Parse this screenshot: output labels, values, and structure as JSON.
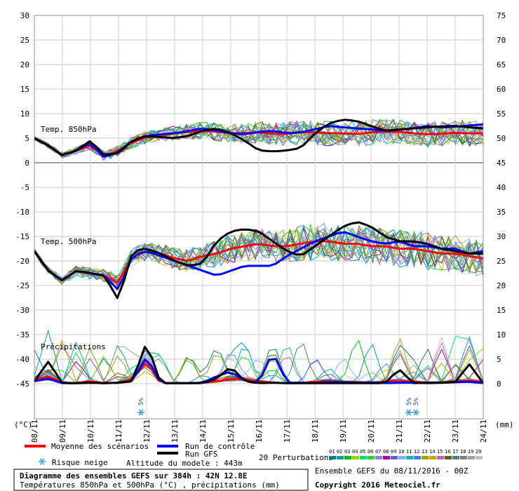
{
  "chart_data": {
    "type": "line",
    "title": "Diagramme des ensembles GEFS sur 384h : 42N 12.8E",
    "subtitle": "Températures 850hPa et 500hPa (°C) , précipitations (mm)",
    "left_axis_unit": "(°C)",
    "right_axis_unit": "(mm)",
    "left_ticks": [
      30,
      25,
      20,
      15,
      10,
      5,
      0,
      -5,
      -10,
      -15,
      -20,
      -25,
      -30,
      -35,
      -40,
      -45
    ],
    "right_ticks": [
      75,
      70,
      65,
      60,
      55,
      50,
      45,
      40,
      35,
      30,
      25,
      20,
      15,
      10,
      5,
      0
    ],
    "ylim": [
      -45,
      30
    ],
    "x_tick_labels": [
      "08/11",
      "09/11",
      "10/11",
      "11/11",
      "12/11",
      "13/11",
      "14/11",
      "15/11",
      "16/11",
      "17/11",
      "18/11",
      "19/11",
      "20/11",
      "21/11",
      "22/11",
      "23/11",
      "24/11"
    ],
    "x_steps": 65,
    "section_labels": {
      "t850": "Temp. 850hPa",
      "t500": "Temp. 500hPa",
      "precip": "Précipitations"
    },
    "snow_risk_markers": [
      {
        "day_index": 3.8,
        "label": "5%"
      },
      {
        "day_index": 13.35,
        "label": "5%"
      },
      {
        "day_index": 13.6,
        "label": "5%"
      }
    ],
    "series": [
      {
        "name": "Moyenne des scénarios",
        "role": "mean_t850",
        "color": "#ff0000",
        "values_by_day": [
          5,
          3.5,
          1.5,
          2.5,
          3.5,
          1.3,
          2.5,
          4.2,
          5.2,
          5.5,
          6.0,
          6.3,
          6.6,
          6.3,
          6.0,
          6.0,
          6.2,
          5.9,
          5.9,
          6.2,
          6.2,
          6.0,
          6.0,
          5.8,
          6.2,
          6.3,
          6.3,
          6.0,
          5.8,
          5.9,
          6.1,
          6.0,
          6.0
        ]
      },
      {
        "name": "Run de contrôle",
        "role": "ctrl_t850",
        "color": "#0000ff",
        "values_by_day": [
          5,
          3.5,
          1.5,
          2.5,
          4.0,
          1.0,
          2.3,
          4.5,
          5.5,
          5.8,
          6.0,
          6.5,
          7.0,
          6.5,
          6.0,
          5.8,
          6.3,
          6.5,
          6.0,
          6.2,
          6.8,
          7.5,
          7.2,
          7.0,
          6.8,
          6.5,
          6.7,
          7.0,
          7.5,
          7.2,
          7.3,
          7.6,
          7.8
        ]
      },
      {
        "name": "Run GFS",
        "role": "gfs_t850",
        "color": "#000000",
        "values_by_day": [
          5,
          3.5,
          1.5,
          2.5,
          4.5,
          1.5,
          2.0,
          4.5,
          5.5,
          5.2,
          5.0,
          5.5,
          6.5,
          7.0,
          6.0,
          4.5,
          2.5,
          2.3,
          2.5,
          3.0,
          6.0,
          8.0,
          8.8,
          8.5,
          7.5,
          6.5,
          6.8,
          7.0,
          7.2,
          7.4,
          7.5,
          7.2,
          7.0
        ]
      },
      {
        "name": "Moyenne des scénarios",
        "role": "mean_t500",
        "color": "#ff0000",
        "values_by_day": [
          -18,
          -22,
          -24,
          -22,
          -22.5,
          -23,
          -24.5,
          -19,
          -18,
          -18.5,
          -19.5,
          -20,
          -19,
          -18.5,
          -17.5,
          -17,
          -16.5,
          -17,
          -17,
          -16.5,
          -16,
          -16,
          -16.5,
          -16.5,
          -17,
          -17,
          -17.5,
          -17.5,
          -18,
          -18.5,
          -18.5,
          -19,
          -19.5
        ]
      },
      {
        "name": "Run de contrôle",
        "role": "ctrl_t500",
        "color": "#0000ff",
        "values_by_day": [
          -18,
          -22,
          -24,
          -22,
          -22.5,
          -23,
          -26,
          -19,
          -18,
          -19,
          -20,
          -21,
          -22,
          -23,
          -22,
          -21,
          -21,
          -21,
          -19,
          -17.5,
          -16,
          -15,
          -14,
          -15,
          -16,
          -16.5,
          -16,
          -17,
          -17,
          -17.5,
          -17.5,
          -18.5,
          -18
        ]
      },
      {
        "name": "Run GFS",
        "role": "gfs_t500",
        "color": "#000000",
        "values_by_day": [
          -18,
          -22,
          -24,
          -22,
          -22.5,
          -23,
          -28,
          -18,
          -17.5,
          -18.5,
          -20,
          -21,
          -20.5,
          -16,
          -14,
          -13.5,
          -14,
          -16,
          -18,
          -19,
          -17,
          -15,
          -13,
          -12,
          -13,
          -15,
          -16,
          -16,
          -16.5,
          -17.5,
          -18,
          -18.5,
          -18.5
        ]
      },
      {
        "name": "Moyenne des scénarios",
        "role": "mean_precip",
        "color": "#ff0000",
        "values_by_day": [
          0.8,
          1.5,
          0.2,
          0.1,
          0.5,
          0.1,
          0.2,
          1.0,
          4.5,
          0.1,
          0.1,
          0.1,
          0.2,
          0.5,
          0.9,
          1.0,
          0.4,
          0.2,
          0.1,
          0.1,
          0.4,
          0.5,
          0.3,
          0.3,
          0.2,
          0.3,
          0.5,
          0.4,
          0.2,
          0.2,
          0.5,
          0.6,
          0.4
        ]
      },
      {
        "name": "Run de contrôle",
        "role": "ctrl_precip",
        "color": "#0000ff",
        "values_by_day": [
          0.5,
          1.0,
          0.1,
          0.1,
          0.2,
          0.1,
          0.2,
          0.5,
          5.5,
          0.1,
          0.1,
          0.1,
          0.2,
          1.5,
          2.5,
          0.5,
          0.2,
          6.5,
          0.2,
          0.2,
          0.1,
          0.4,
          0.3,
          0.2,
          0.3,
          0.1,
          0.2,
          0.2,
          0.1,
          0.2,
          0.3,
          0.4,
          0.1
        ]
      },
      {
        "name": "Run GFS",
        "role": "gfs_precip",
        "color": "#000000",
        "values_by_day": [
          0.5,
          4.5,
          0.1,
          0.1,
          0.2,
          0.1,
          0.2,
          0.5,
          8.5,
          0.1,
          0.1,
          0.1,
          0.1,
          1.0,
          3.5,
          0.5,
          0.1,
          0.2,
          0.1,
          0.1,
          0.1,
          0.1,
          0.1,
          0.1,
          0.1,
          0.1,
          3.0,
          0.1,
          0.2,
          0.2,
          0.3,
          4.0,
          0.1
        ]
      }
    ],
    "perturbations_label": "20 Perturbations",
    "perturbation_ids": [
      "01",
      "02",
      "03",
      "04",
      "05",
      "06",
      "07",
      "08",
      "09",
      "10",
      "11",
      "12",
      "13",
      "14",
      "15",
      "16",
      "17",
      "18",
      "19",
      "20"
    ],
    "perturbation_colors": [
      "#008080",
      "#00a0a0",
      "#00c000",
      "#a0d000",
      "#00e060",
      "#30d030",
      "#8080ff",
      "#a000a0",
      "#6060d0",
      "#80b0ff",
      "#00b0c0",
      "#4080ff",
      "#a0a000",
      "#d0a000",
      "#c060c0",
      "#606000",
      "#508080",
      "#808080",
      "#a0a0a0",
      "#c0c0c0"
    ],
    "grid": true
  },
  "legend": {
    "mean": "Moyenne des scénarios",
    "control": "Run de contrôle",
    "gfs": "Run GFS",
    "snow": "Risque neige",
    "altitude": "Altitude du modele : 443m"
  },
  "footer": {
    "title_line": "Diagramme des ensembles GEFS sur 384h : 42N 12.8E",
    "subtitle_line": "Températures 850hPa et 500hPa (°C) , précipitations (mm)",
    "ensemble_date": "Ensemble GEFS du 08/11/2016 - 00Z",
    "copyright": "Copyright 2016 Meteociel.fr"
  }
}
